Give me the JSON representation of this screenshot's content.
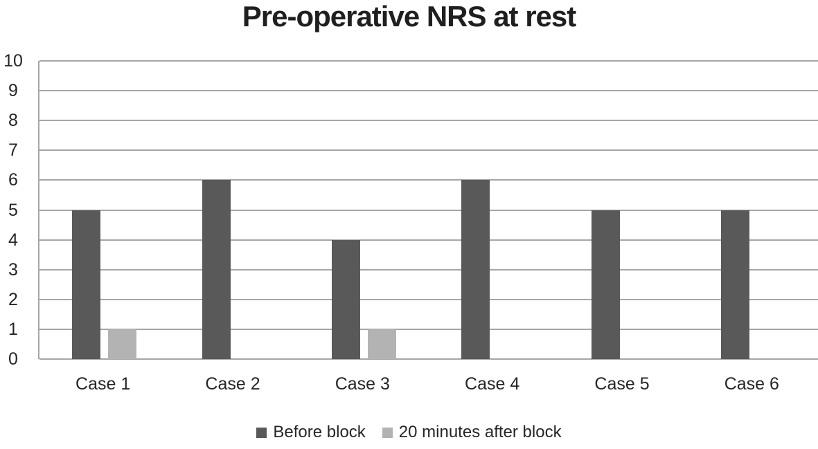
{
  "title": "Pre-operative NRS at rest",
  "colors": {
    "title_text": "#1f1f1f",
    "label_text": "#262626",
    "gridline": "#a6a6a6",
    "axis_line": "#a6a6a6",
    "series_before": "#595959",
    "series_after": "#b3b3b3",
    "background": "#ffffff"
  },
  "chart_data": {
    "type": "bar",
    "title": "Pre-operative NRS at rest",
    "categories": [
      "Case 1",
      "Case 2",
      "Case 3",
      "Case 4",
      "Case 5",
      "Case 6"
    ],
    "series": [
      {
        "name": "Before block",
        "color": "#595959",
        "values": [
          5,
          6,
          4,
          6,
          5,
          5
        ]
      },
      {
        "name": "20 minutes after block",
        "color": "#b3b3b3",
        "values": [
          1,
          0,
          1,
          0,
          0,
          0
        ]
      }
    ],
    "xlabel": "",
    "ylabel": "",
    "ylim": [
      0,
      10
    ],
    "ytick_step": 1,
    "yticks": [
      0,
      1,
      2,
      3,
      4,
      5,
      6,
      7,
      8,
      9,
      10
    ],
    "grid": "horizontal",
    "legend_position": "bottom"
  }
}
